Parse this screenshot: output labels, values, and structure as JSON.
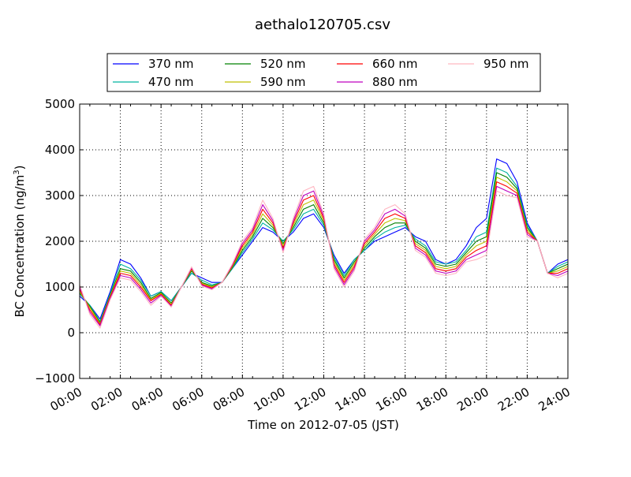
{
  "chart_data": {
    "type": "line",
    "title": "aethalo120705.csv",
    "xlabel": "Time on 2012-07-05 (JST)",
    "ylabel_main": "BC Concentration (ng/m",
    "ylabel_sup": "3",
    "ylabel_close": ")",
    "xlim": [
      0,
      24
    ],
    "ylim": [
      -1000,
      5000
    ],
    "grid": true,
    "legend_placement": "top-center",
    "x_ticks": [
      {
        "value": 0,
        "label": "00:00"
      },
      {
        "value": 2,
        "label": "02:00"
      },
      {
        "value": 4,
        "label": "04:00"
      },
      {
        "value": 6,
        "label": "06:00"
      },
      {
        "value": 8,
        "label": "08:00"
      },
      {
        "value": 10,
        "label": "10:00"
      },
      {
        "value": 12,
        "label": "12:00"
      },
      {
        "value": 14,
        "label": "14:00"
      },
      {
        "value": 16,
        "label": "16:00"
      },
      {
        "value": 18,
        "label": "18:00"
      },
      {
        "value": 20,
        "label": "20:00"
      },
      {
        "value": 22,
        "label": "22:00"
      },
      {
        "value": 24,
        "label": "24:00"
      }
    ],
    "y_ticks": [
      {
        "value": -1000,
        "label": "−1000"
      },
      {
        "value": 0,
        "label": "0"
      },
      {
        "value": 1000,
        "label": "1000"
      },
      {
        "value": 2000,
        "label": "2000"
      },
      {
        "value": 3000,
        "label": "3000"
      },
      {
        "value": 4000,
        "label": "4000"
      },
      {
        "value": 5000,
        "label": "5000"
      }
    ],
    "x": [
      0,
      0.5,
      1,
      1.5,
      2,
      2.5,
      3,
      3.5,
      4,
      4.5,
      5,
      5.5,
      6,
      6.5,
      7,
      7.5,
      8,
      8.5,
      9,
      9.5,
      10,
      10.5,
      11,
      11.5,
      12,
      12.5,
      13,
      13.5,
      14,
      14.5,
      15,
      15.5,
      16,
      16.5,
      17,
      17.5,
      18,
      18.5,
      19,
      19.5,
      20,
      20.5,
      21,
      21.5,
      22,
      22.5,
      23,
      23.5,
      24
    ],
    "series": [
      {
        "name": "370 nm",
        "color": "#0000ff",
        "values": [
          800,
          600,
          300,
          900,
          1600,
          1500,
          1200,
          800,
          900,
          700,
          1000,
          1300,
          1200,
          1100,
          1100,
          1400,
          1700,
          2000,
          2300,
          2200,
          2000,
          2200,
          2500,
          2600,
          2300,
          1700,
          1300,
          1600,
          1800,
          2000,
          2100,
          2200,
          2300,
          2100,
          2000,
          1600,
          1500,
          1600,
          1900,
          2300,
          2500,
          3800,
          3700,
          3300,
          2400,
          2000,
          1300,
          1500,
          1600
        ]
      },
      {
        "name": "470 nm",
        "color": "#00b3a0",
        "values": [
          850,
          600,
          250,
          850,
          1500,
          1400,
          1150,
          800,
          900,
          700,
          1000,
          1300,
          1150,
          1050,
          1100,
          1400,
          1750,
          2050,
          2400,
          2250,
          2000,
          2250,
          2600,
          2700,
          2350,
          1650,
          1250,
          1600,
          1800,
          2050,
          2200,
          2300,
          2350,
          2050,
          1900,
          1550,
          1500,
          1550,
          1800,
          2100,
          2200,
          3600,
          3500,
          3200,
          2350,
          2000,
          1300,
          1450,
          1550
        ]
      },
      {
        "name": "520 nm",
        "color": "#008000",
        "values": [
          880,
          580,
          220,
          820,
          1400,
          1350,
          1100,
          750,
          880,
          650,
          1000,
          1350,
          1100,
          1020,
          1100,
          1420,
          1800,
          2100,
          2500,
          2300,
          1950,
          2300,
          2700,
          2800,
          2400,
          1600,
          1200,
          1550,
          1850,
          2100,
          2300,
          2400,
          2400,
          2000,
          1850,
          1500,
          1450,
          1500,
          1750,
          2000,
          2100,
          3500,
          3400,
          3150,
          2300,
          2000,
          1300,
          1400,
          1500
        ]
      },
      {
        "name": "590 nm",
        "color": "#bfbf00",
        "values": [
          900,
          550,
          200,
          800,
          1350,
          1300,
          1050,
          720,
          860,
          620,
          1000,
          1380,
          1080,
          1000,
          1100,
          1440,
          1850,
          2150,
          2600,
          2350,
          1900,
          2350,
          2800,
          2900,
          2450,
          1550,
          1150,
          1500,
          1900,
          2150,
          2400,
          2500,
          2450,
          1950,
          1800,
          1450,
          1400,
          1450,
          1700,
          1900,
          2000,
          3400,
          3300,
          3100,
          2250,
          2000,
          1300,
          1350,
          1450
        ]
      },
      {
        "name": "660 nm",
        "color": "#ff0000",
        "values": [
          950,
          500,
          180,
          780,
          1300,
          1250,
          1000,
          700,
          840,
          600,
          1000,
          1400,
          1060,
          980,
          1100,
          1460,
          1900,
          2200,
          2700,
          2400,
          1850,
          2400,
          2900,
          3000,
          2500,
          1500,
          1100,
          1450,
          1950,
          2200,
          2500,
          2600,
          2500,
          1900,
          1750,
          1400,
          1350,
          1400,
          1650,
          1800,
          1900,
          3300,
          3200,
          3050,
          2200,
          2000,
          1300,
          1300,
          1400
        ]
      },
      {
        "name": "880 nm",
        "color": "#bf00bf",
        "values": [
          1000,
          450,
          150,
          750,
          1250,
          1200,
          950,
          650,
          820,
          580,
          1000,
          1420,
          1040,
          960,
          1100,
          1480,
          1950,
          2250,
          2800,
          2450,
          1800,
          2450,
          3000,
          3100,
          2550,
          1450,
          1050,
          1400,
          2000,
          2250,
          2600,
          2700,
          2550,
          1850,
          1700,
          1350,
          1300,
          1350,
          1600,
          1700,
          1800,
          3200,
          3100,
          3000,
          2150,
          2000,
          1300,
          1250,
          1350
        ]
      },
      {
        "name": "950 nm",
        "color": "#ffb6c1",
        "values": [
          1050,
          400,
          100,
          720,
          1200,
          1150,
          900,
          600,
          800,
          560,
          1000,
          1440,
          1020,
          940,
          1100,
          1500,
          2000,
          2300,
          2900,
          2500,
          1750,
          2500,
          3100,
          3200,
          2600,
          1400,
          1000,
          1350,
          2050,
          2300,
          2700,
          2800,
          2600,
          1800,
          1650,
          1300,
          1250,
          1300,
          1550,
          1600,
          1700,
          3100,
          3000,
          2950,
          2100,
          2000,
          1300,
          1200,
          1300
        ]
      }
    ]
  }
}
